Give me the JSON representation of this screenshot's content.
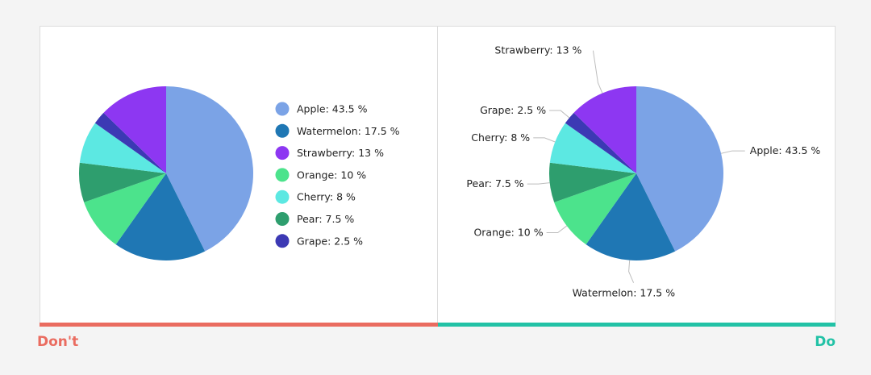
{
  "colors": {
    "dont": "#ea6c60",
    "do": "#22c2a6"
  },
  "captions": {
    "dont": "Don't",
    "do": "Do"
  },
  "chart_data": [
    {
      "type": "pie",
      "variant": "legend",
      "unit": "%",
      "start_angle": "top",
      "direction": "clockwise",
      "legend_position": "right",
      "slices": [
        {
          "label": "Apple",
          "value": 43.5,
          "color": "#7ba3e6",
          "text": "Apple: 43.5 %"
        },
        {
          "label": "Watermelon",
          "value": 17.5,
          "color": "#1f77b4",
          "text": "Watermelon: 17.5 %"
        },
        {
          "label": "Orange",
          "value": 10,
          "color": "#4ce38c",
          "text": "Orange: 10 %"
        },
        {
          "label": "Pear",
          "value": 7.5,
          "color": "#2e9e6e",
          "text": "Pear: 7.5 %"
        },
        {
          "label": "Cherry",
          "value": 8,
          "color": "#5ce8e2",
          "text": "Cherry: 8 %"
        },
        {
          "label": "Grape",
          "value": 2.5,
          "color": "#3c39b4",
          "text": "Grape: 2.5 %"
        },
        {
          "label": "Strawberry",
          "value": 13,
          "color": "#8d37f2",
          "text": "Strawberry: 13 %"
        }
      ],
      "legend": [
        {
          "text": "Apple: 43.5 %",
          "color": "#7ba3e6"
        },
        {
          "text": "Watermelon: 17.5 %",
          "color": "#1f77b4"
        },
        {
          "text": "Strawberry: 13 %",
          "color": "#8d37f2"
        },
        {
          "text": "Orange: 10 %",
          "color": "#4ce38c"
        },
        {
          "text": "Cherry: 8 %",
          "color": "#5ce8e2"
        },
        {
          "text": "Pear: 7.5 %",
          "color": "#2e9e6e"
        },
        {
          "text": "Grape: 2.5 %",
          "color": "#3c39b4"
        }
      ]
    },
    {
      "type": "pie",
      "variant": "direct-labels",
      "unit": "%",
      "start_angle": "top",
      "direction": "clockwise",
      "slices": [
        {
          "label": "Apple",
          "value": 43.5,
          "color": "#7ba3e6",
          "text": "Apple: 43.5 %"
        },
        {
          "label": "Watermelon",
          "value": 17.5,
          "color": "#1f77b4",
          "text": "Watermelon: 17.5 %"
        },
        {
          "label": "Orange",
          "value": 10,
          "color": "#4ce38c",
          "text": "Orange: 10 %"
        },
        {
          "label": "Pear",
          "value": 7.5,
          "color": "#2e9e6e",
          "text": "Pear: 7.5 %"
        },
        {
          "label": "Cherry",
          "value": 8,
          "color": "#5ce8e2",
          "text": "Cherry: 8 %"
        },
        {
          "label": "Grape",
          "value": 2.5,
          "color": "#3c39b4",
          "text": "Grape: 2.5 %"
        },
        {
          "label": "Strawberry",
          "value": 13,
          "color": "#8d37f2",
          "text": "Strawberry: 13 %"
        }
      ]
    }
  ]
}
